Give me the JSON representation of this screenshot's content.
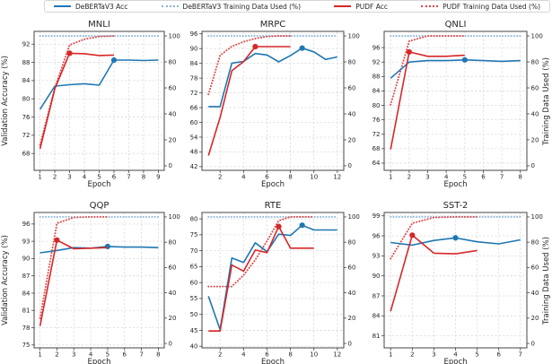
{
  "legend": {
    "items": [
      {
        "label": "DeBERTaV3 Acc",
        "style": "solid",
        "color": "#1f77b4"
      },
      {
        "label": "DeBERTaV3 Training Data Used (%)",
        "style": "dotted",
        "color": "#8ab4d6"
      },
      {
        "label": "PUDF Acc",
        "style": "solid",
        "color": "#d62728"
      },
      {
        "label": "PUDF Training Data Used (%)",
        "style": "dotted",
        "color": "#e04545"
      }
    ]
  },
  "labels": {
    "x": "Epoch",
    "y_left": "Validation Accuracy (%)",
    "y_right": "Training Data Used (%)"
  },
  "chart_data": [
    {
      "type": "line",
      "title": "MNLI",
      "xlabel": "Epoch",
      "x_ticks": [
        1,
        2,
        3,
        4,
        5,
        6,
        7,
        8,
        9
      ],
      "x_range": [
        0.6,
        9.4
      ],
      "left_axis": {
        "label": "Validation Accuracy (%)",
        "ticks": [
          68,
          72,
          76,
          80,
          84,
          88,
          92
        ],
        "range": [
          64.3,
          94.8
        ]
      },
      "right_axis": {
        "label": "Training Data Used (%)",
        "ticks": [
          0,
          20,
          40,
          60,
          80,
          100
        ],
        "range": [
          -3.5,
          103.5
        ]
      },
      "series": [
        {
          "name": "DeBERTaV3 Training Data Used (%)",
          "axis": "right",
          "style": "dotted",
          "color": "#8ab4d6",
          "epochs": [
            1,
            2,
            3,
            4,
            5,
            6,
            7,
            8,
            9
          ],
          "values": [
            100,
            100,
            100,
            100,
            100,
            100,
            100,
            100,
            100
          ]
        },
        {
          "name": "PUDF Training Data Used (%)",
          "axis": "right",
          "style": "dotted",
          "color": "#e04545",
          "epochs": [
            1,
            2,
            3,
            4,
            5,
            6
          ],
          "values": [
            16,
            60,
            93,
            97.5,
            99.5,
            100
          ]
        },
        {
          "name": "DeBERTaV3 Acc",
          "axis": "left",
          "style": "solid",
          "color": "#1f77b4",
          "epochs": [
            1,
            2,
            3,
            4,
            5,
            6,
            7,
            8,
            9
          ],
          "values": [
            77.7,
            82.8,
            83.1,
            83.3,
            83.0,
            88.5,
            88.5,
            88.4,
            88.5
          ],
          "marker_epoch": 6
        },
        {
          "name": "PUDF Acc",
          "axis": "left",
          "style": "solid",
          "color": "#d62728",
          "epochs": [
            1,
            2,
            3,
            4,
            5,
            6
          ],
          "values": [
            69.0,
            82.2,
            90.0,
            89.9,
            89.5,
            89.6
          ],
          "marker_epoch": 3
        }
      ]
    },
    {
      "type": "line",
      "title": "MRPC",
      "xlabel": "Epoch",
      "x_ticks": [
        2,
        4,
        6,
        8,
        10,
        12
      ],
      "x_range": [
        0.45,
        12.55
      ],
      "left_axis": {
        "label": "Validation Accuracy (%)",
        "ticks": [
          42,
          48,
          54,
          60,
          66,
          72,
          78,
          84,
          90,
          96
        ],
        "range": [
          40.5,
          97.0
        ]
      },
      "right_axis": {
        "label": "Training Data Used (%)",
        "ticks": [
          0,
          20,
          40,
          60,
          80,
          100
        ],
        "range": [
          -3.5,
          103.5
        ]
      },
      "series": [
        {
          "name": "DeBERTaV3 Training Data Used (%)",
          "axis": "right",
          "style": "dotted",
          "color": "#8ab4d6",
          "epochs": [
            1,
            2,
            3,
            4,
            5,
            6,
            7,
            8,
            9,
            10,
            11,
            12
          ],
          "values": [
            100,
            100,
            100,
            100,
            100,
            100,
            100,
            100,
            100,
            100,
            100,
            100
          ]
        },
        {
          "name": "PUDF Training Data Used (%)",
          "axis": "right",
          "style": "dotted",
          "color": "#e04545",
          "epochs": [
            1,
            2,
            3,
            4,
            5,
            6,
            7,
            8
          ],
          "values": [
            55,
            85,
            92,
            95.5,
            98,
            99.5,
            100,
            100
          ]
        },
        {
          "name": "DeBERTaV3 Acc",
          "axis": "left",
          "style": "solid",
          "color": "#1f77b4",
          "epochs": [
            1,
            2,
            3,
            4,
            5,
            6,
            7,
            8,
            9,
            10,
            11,
            12
          ],
          "values": [
            66.4,
            66.4,
            84.1,
            84.8,
            88.0,
            87.4,
            84.6,
            87.2,
            90.2,
            88.7,
            85.6,
            86.6
          ],
          "marker_epoch": 9
        },
        {
          "name": "PUDF Acc",
          "axis": "left",
          "style": "solid",
          "color": "#d62728",
          "epochs": [
            1,
            2,
            3,
            4,
            5,
            6,
            7,
            8
          ],
          "values": [
            46.5,
            62.0,
            81.0,
            84.7,
            90.8,
            90.8,
            90.8,
            90.8
          ],
          "marker_epoch": 5
        }
      ]
    },
    {
      "type": "line",
      "title": "QNLI",
      "xlabel": "Epoch",
      "x_ticks": [
        1,
        2,
        3,
        4,
        5,
        6,
        7,
        8
      ],
      "x_range": [
        0.65,
        8.35
      ],
      "left_axis": {
        "label": "Validation Accuracy (%)",
        "ticks": [
          64,
          68,
          72,
          76,
          80,
          84,
          88,
          92,
          96
        ],
        "range": [
          62.0,
          100.5
        ]
      },
      "right_axis": {
        "label": "Training Data Used (%)",
        "ticks": [
          0,
          20,
          40,
          60,
          80,
          100
        ],
        "range": [
          -3.5,
          103.5
        ]
      },
      "series": [
        {
          "name": "DeBERTaV3 Training Data Used (%)",
          "axis": "right",
          "style": "dotted",
          "color": "#8ab4d6",
          "epochs": [
            1,
            2,
            3,
            4,
            5,
            6,
            7,
            8
          ],
          "values": [
            100,
            100,
            100,
            100,
            100,
            100,
            100,
            100
          ]
        },
        {
          "name": "PUDF Training Data Used (%)",
          "axis": "right",
          "style": "dotted",
          "color": "#e04545",
          "epochs": [
            1,
            2,
            3,
            4,
            5
          ],
          "values": [
            47,
            96,
            100,
            100,
            100
          ]
        },
        {
          "name": "DeBERTaV3 Acc",
          "axis": "left",
          "style": "solid",
          "color": "#1f77b4",
          "epochs": [
            1,
            2,
            3,
            4,
            5,
            6,
            7,
            8
          ],
          "values": [
            87.5,
            92.0,
            92.4,
            92.4,
            92.6,
            92.4,
            92.2,
            92.4
          ],
          "marker_epoch": 5
        },
        {
          "name": "PUDF Acc",
          "axis": "left",
          "style": "solid",
          "color": "#d62728",
          "epochs": [
            1,
            2,
            3,
            4,
            5
          ],
          "values": [
            67.8,
            94.8,
            93.6,
            93.6,
            93.9
          ],
          "marker_epoch": 2
        }
      ]
    },
    {
      "type": "line",
      "title": "QQP",
      "xlabel": "Epoch",
      "x_ticks": [
        1,
        2,
        3,
        4,
        5,
        6,
        7,
        8
      ],
      "x_range": [
        0.65,
        8.35
      ],
      "left_axis": {
        "label": "Validation Accuracy (%)",
        "ticks": [
          75,
          78,
          81,
          84,
          87,
          90,
          93,
          96
        ],
        "range": [
          74.5,
          98.0
        ]
      },
      "right_axis": {
        "label": "Training Data Used (%)",
        "ticks": [
          0,
          20,
          40,
          60,
          80,
          100
        ],
        "range": [
          -3.5,
          103.5
        ]
      },
      "series": [
        {
          "name": "DeBERTaV3 Training Data Used (%)",
          "axis": "right",
          "style": "dotted",
          "color": "#8ab4d6",
          "epochs": [
            1,
            2,
            3,
            4,
            5,
            6,
            7,
            8
          ],
          "values": [
            100,
            100,
            100,
            100,
            100,
            100,
            100,
            100
          ]
        },
        {
          "name": "PUDF Training Data Used (%)",
          "axis": "right",
          "style": "dotted",
          "color": "#e04545",
          "epochs": [
            1,
            2,
            3,
            4,
            5
          ],
          "values": [
            20,
            95,
            99.5,
            100,
            100
          ]
        },
        {
          "name": "DeBERTaV3 Acc",
          "axis": "left",
          "style": "solid",
          "color": "#1f77b4",
          "epochs": [
            1,
            2,
            3,
            4,
            5,
            6,
            7,
            8
          ],
          "values": [
            91.0,
            91.4,
            91.9,
            91.8,
            92.1,
            92.0,
            92.0,
            91.9
          ],
          "marker_epoch": 5
        },
        {
          "name": "PUDF Acc",
          "axis": "left",
          "style": "solid",
          "color": "#d62728",
          "epochs": [
            1,
            2,
            3,
            4,
            5
          ],
          "values": [
            78.3,
            93.2,
            91.7,
            91.8,
            91.9
          ],
          "marker_epoch": 2
        }
      ]
    },
    {
      "type": "line",
      "title": "RTE",
      "xlabel": "Epoch",
      "x_ticks": [
        2,
        4,
        6,
        8,
        10,
        12
      ],
      "x_range": [
        0.45,
        12.55
      ],
      "left_axis": {
        "label": "Validation Accuracy (%)",
        "ticks": [
          40,
          45,
          50,
          55,
          60,
          65,
          70,
          75,
          80
        ],
        "range": [
          39.5,
          82.0
        ]
      },
      "right_axis": {
        "label": "Training Data Used (%)",
        "ticks": [
          0,
          20,
          40,
          60,
          80,
          100
        ],
        "range": [
          -3.5,
          103.5
        ]
      },
      "series": [
        {
          "name": "DeBERTaV3 Training Data Used (%)",
          "axis": "right",
          "style": "dotted",
          "color": "#8ab4d6",
          "epochs": [
            1,
            2,
            3,
            4,
            5,
            6,
            7,
            8,
            9,
            10,
            11,
            12
          ],
          "values": [
            100,
            100,
            100,
            100,
            100,
            100,
            100,
            100,
            100,
            100,
            100,
            100
          ]
        },
        {
          "name": "PUDF Training Data Used (%)",
          "axis": "right",
          "style": "dotted",
          "color": "#e04545",
          "epochs": [
            1,
            2,
            3,
            4,
            5,
            6,
            7,
            8,
            9,
            10
          ],
          "values": [
            45,
            45,
            45,
            54,
            66,
            81,
            97,
            100,
            100,
            100
          ]
        },
        {
          "name": "DeBERTaV3 Acc",
          "axis": "left",
          "style": "solid",
          "color": "#1f77b4",
          "epochs": [
            1,
            2,
            3,
            4,
            5,
            6,
            7,
            8,
            9,
            10,
            11,
            12
          ],
          "values": [
            55.7,
            45.2,
            67.7,
            66.3,
            72.5,
            69.7,
            75.2,
            74.8,
            78.0,
            76.5,
            76.5,
            76.5
          ],
          "marker_epoch": 9
        },
        {
          "name": "PUDF Acc",
          "axis": "left",
          "style": "solid",
          "color": "#d62728",
          "epochs": [
            1,
            2,
            3,
            4,
            5,
            6,
            7,
            8,
            9,
            10
          ],
          "values": [
            44.8,
            44.8,
            65.5,
            63.6,
            70.2,
            69.4,
            77.6,
            70.8,
            70.8,
            70.8
          ],
          "marker_epoch": 7
        }
      ]
    },
    {
      "type": "line",
      "title": "SST-2",
      "xlabel": "Epoch",
      "x_ticks": [
        1,
        2,
        3,
        4,
        5,
        6,
        7
      ],
      "x_range": [
        0.7,
        7.3
      ],
      "left_axis": {
        "label": "Validation Accuracy (%)",
        "ticks": [
          81,
          84,
          87,
          90,
          93,
          96,
          99
        ],
        "range": [
          79.2,
          99.5
        ]
      },
      "right_axis": {
        "label": "Training Data Used (%)",
        "ticks": [
          0,
          20,
          40,
          60,
          80,
          100
        ],
        "range": [
          -3.5,
          103.5
        ]
      },
      "series": [
        {
          "name": "DeBERTaV3 Training Data Used (%)",
          "axis": "right",
          "style": "dotted",
          "color": "#8ab4d6",
          "epochs": [
            1,
            2,
            3,
            4,
            5,
            6,
            7
          ],
          "values": [
            100,
            100,
            100,
            100,
            100,
            100,
            100
          ]
        },
        {
          "name": "PUDF Training Data Used (%)",
          "axis": "right",
          "style": "dotted",
          "color": "#e04545",
          "epochs": [
            1,
            2,
            3,
            4,
            5
          ],
          "values": [
            67,
            95,
            99.5,
            100,
            100
          ]
        },
        {
          "name": "DeBERTaV3 Acc",
          "axis": "left",
          "style": "solid",
          "color": "#1f77b4",
          "epochs": [
            1,
            2,
            3,
            4,
            5,
            6,
            7
          ],
          "values": [
            95.0,
            94.6,
            95.3,
            95.7,
            95.1,
            94.8,
            95.4
          ],
          "marker_epoch": 4
        },
        {
          "name": "PUDF Acc",
          "axis": "left",
          "style": "solid",
          "color": "#d62728",
          "epochs": [
            1,
            2,
            3,
            4,
            5
          ],
          "values": [
            84.7,
            96.1,
            93.4,
            93.3,
            93.8
          ],
          "marker_epoch": 2
        }
      ]
    }
  ]
}
